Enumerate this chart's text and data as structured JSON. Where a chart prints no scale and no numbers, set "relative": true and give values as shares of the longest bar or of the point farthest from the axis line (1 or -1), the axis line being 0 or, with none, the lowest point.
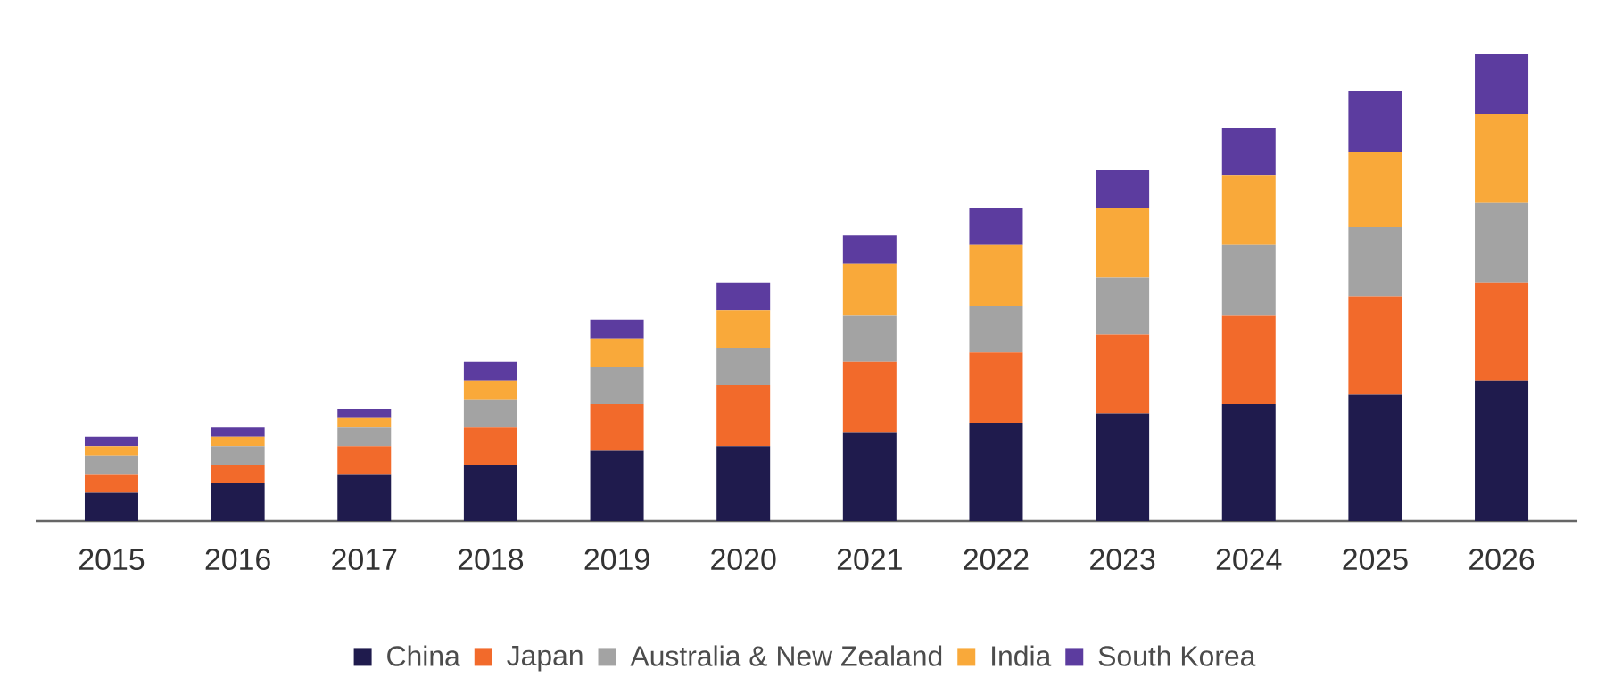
{
  "chart_data": {
    "type": "bar",
    "stacked": true,
    "relative": true,
    "legend": "bottom",
    "categories": [
      "2015",
      "2016",
      "2017",
      "2018",
      "2019",
      "2020",
      "2021",
      "2022",
      "2023",
      "2024",
      "2025",
      "2026"
    ],
    "series": [
      {
        "name": "China",
        "color": "#1f1b4d",
        "values": [
          0.06,
          0.08,
          0.1,
          0.12,
          0.15,
          0.16,
          0.19,
          0.21,
          0.23,
          0.25,
          0.27,
          0.3
        ]
      },
      {
        "name": "Japan",
        "color": "#f26a2b",
        "values": [
          0.04,
          0.04,
          0.06,
          0.08,
          0.1,
          0.13,
          0.15,
          0.15,
          0.17,
          0.19,
          0.21,
          0.21
        ]
      },
      {
        "name": "Australia & New Zealand",
        "color": "#a3a3a3",
        "values": [
          0.04,
          0.04,
          0.04,
          0.06,
          0.08,
          0.08,
          0.1,
          0.1,
          0.12,
          0.15,
          0.15,
          0.17
        ]
      },
      {
        "name": "India",
        "color": "#f9a93a",
        "values": [
          0.02,
          0.02,
          0.02,
          0.04,
          0.06,
          0.08,
          0.11,
          0.13,
          0.15,
          0.15,
          0.16,
          0.19
        ]
      },
      {
        "name": "South Korea",
        "color": "#5c3c9f",
        "values": [
          0.02,
          0.02,
          0.02,
          0.04,
          0.04,
          0.06,
          0.06,
          0.08,
          0.08,
          0.1,
          0.13,
          0.13
        ]
      }
    ]
  }
}
